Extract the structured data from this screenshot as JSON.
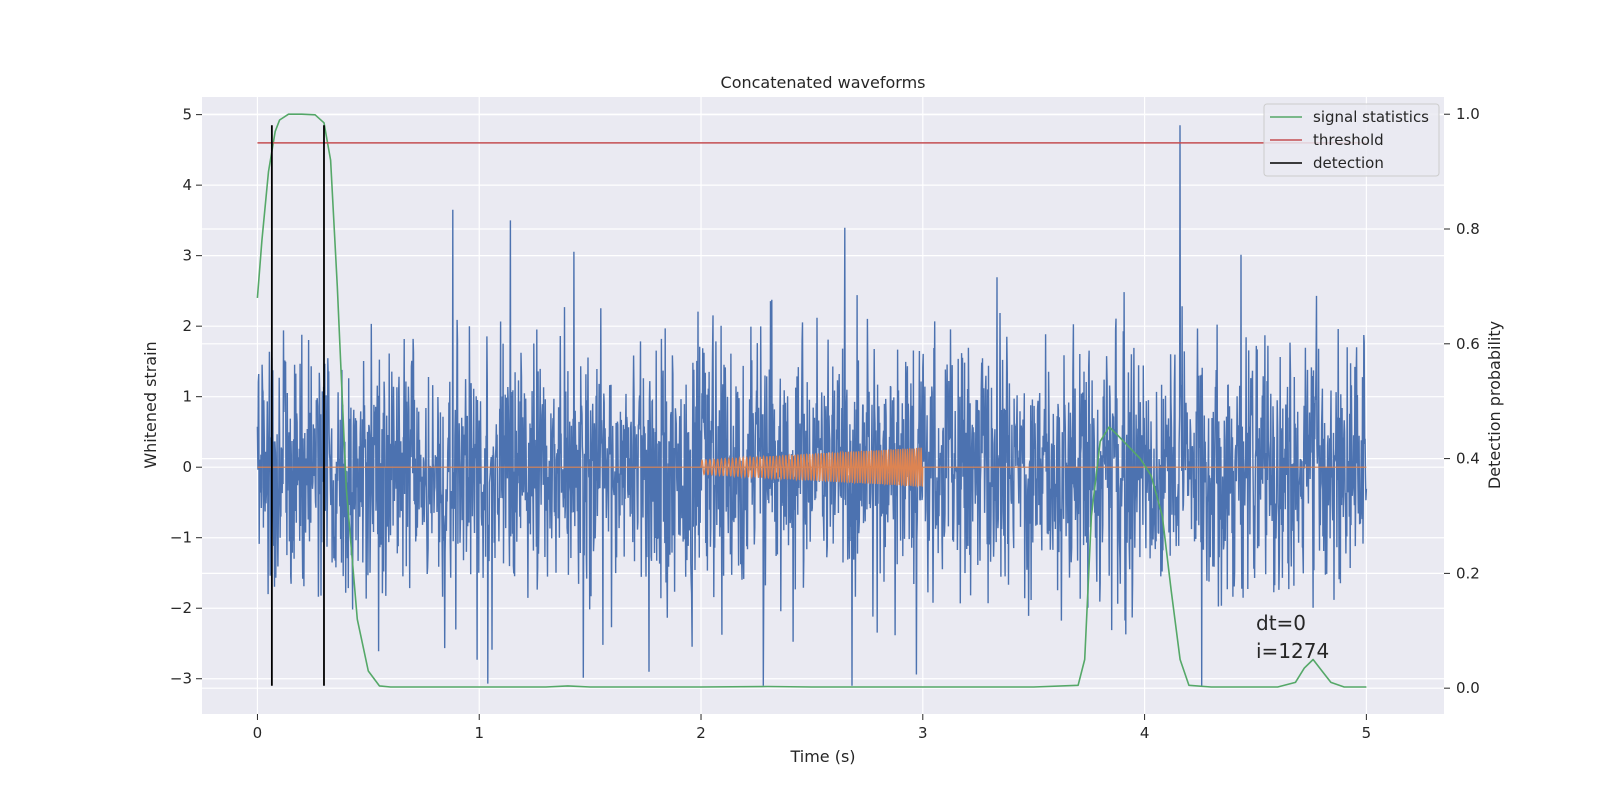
{
  "chart_data": {
    "type": "line",
    "title": "Concatenated waveforms",
    "xlabel": "Time (s)",
    "ylabel": "Whitened strain",
    "ylabel_right": "Detection probability",
    "xlim": [
      -0.25,
      5.35
    ],
    "ylim": [
      -3.5,
      5.25
    ],
    "ylim_right": [
      -0.045,
      1.03
    ],
    "x_ticks": [
      0,
      1,
      2,
      3,
      4,
      5
    ],
    "y_ticks": [
      -3,
      -2,
      -1,
      0,
      1,
      2,
      3,
      4,
      5
    ],
    "y_ticks_right": [
      0.0,
      0.2,
      0.4,
      0.6,
      0.8,
      1.0
    ],
    "grid": true,
    "legend_position": "top-right",
    "colors": {
      "strain": "#4c72b0",
      "injection": "#dd8452",
      "signal_statistics": "#55a868",
      "threshold": "#c44e52",
      "detection": "#000000",
      "background": "#eaeaf2",
      "grid": "#ffffff"
    },
    "legend": [
      {
        "label": "signal statistics",
        "color": "#55a868"
      },
      {
        "label": "threshold",
        "color": "#c44e52"
      },
      {
        "label": "detection",
        "color": "#000000"
      }
    ],
    "series": [
      {
        "key": "strain",
        "axis": "left",
        "description_kind": "noise",
        "x_range": [
          0,
          5
        ],
        "amplitude_range": [
          -3.1,
          4.85
        ],
        "peaks": [
          [
            0.88,
            3.65
          ],
          [
            1.14,
            3.5
          ],
          [
            2.28,
            -3.1
          ],
          [
            4.16,
            4.85
          ]
        ]
      },
      {
        "key": "injection",
        "axis": "left",
        "x_range": [
          2,
          3
        ],
        "amplitude_start": 0.1,
        "amplitude_end": 0.28,
        "cycles": 55
      },
      {
        "key": "signal_statistics",
        "axis": "right",
        "x": [
          0,
          0.02,
          0.05,
          0.08,
          0.1,
          0.14,
          0.2,
          0.26,
          0.3,
          0.33,
          0.36,
          0.4,
          0.45,
          0.5,
          0.55,
          0.6,
          1.0,
          1.3,
          1.4,
          1.5,
          2.0,
          2.3,
          2.5,
          3.0,
          3.5,
          3.7,
          3.73,
          3.76,
          3.8,
          3.84,
          3.88,
          3.93,
          3.98,
          4.03,
          4.08,
          4.12,
          4.16,
          4.2,
          4.3,
          4.6,
          4.68,
          4.72,
          4.76,
          4.8,
          4.84,
          4.9,
          5.0
        ],
        "y": [
          0.68,
          0.78,
          0.9,
          0.97,
          0.99,
          1.0,
          1.0,
          0.999,
          0.985,
          0.92,
          0.7,
          0.35,
          0.12,
          0.03,
          0.004,
          0.002,
          0.002,
          0.002,
          0.004,
          0.002,
          0.002,
          0.003,
          0.002,
          0.002,
          0.002,
          0.005,
          0.05,
          0.3,
          0.43,
          0.455,
          0.44,
          0.42,
          0.4,
          0.37,
          0.3,
          0.17,
          0.05,
          0.005,
          0.002,
          0.002,
          0.01,
          0.035,
          0.05,
          0.03,
          0.01,
          0.002,
          0.002
        ]
      },
      {
        "key": "threshold",
        "axis": "right",
        "x": [
          0,
          5
        ],
        "y": [
          0.95,
          0.95
        ]
      },
      {
        "key": "detection",
        "axis": "left",
        "x": [
          0.065,
          0.3
        ],
        "y_range": [
          -3.1,
          4.85
        ]
      }
    ],
    "annotations": [
      {
        "text": "dt=0",
        "x": 4.5,
        "y": -2.2
      },
      {
        "text": "i=1274",
        "x": 4.5,
        "y": -2.6
      }
    ]
  }
}
